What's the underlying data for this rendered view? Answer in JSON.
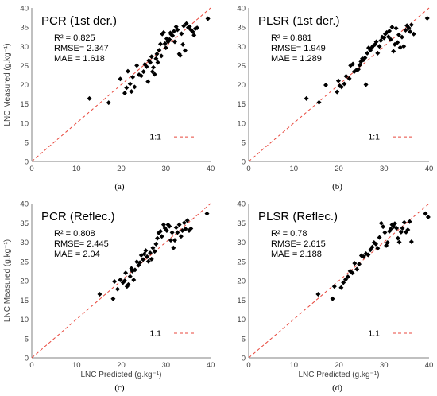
{
  "figure": {
    "panels": [
      {
        "id": "a",
        "title": "PCR (1st der.)",
        "caption": "(a)",
        "stats": [
          "R² = 0.825",
          "RMSE= 2.347",
          "MAE = 1.618"
        ],
        "legend": "1:1",
        "xlabel": "",
        "ylabel": "LNC Measured (g.kg⁻¹)"
      },
      {
        "id": "b",
        "title": "PLSR (1st der.)",
        "caption": "(b)",
        "stats": [
          "R² = 0.881",
          "RMSE= 1.949",
          "MAE = 1.289"
        ],
        "legend": "1:1",
        "xlabel": "",
        "ylabel": ""
      },
      {
        "id": "c",
        "title": "PCR (Reflec.)",
        "caption": "(c)",
        "stats": [
          "R² = 0.808",
          "RMSE= 2.445",
          "MAE = 2.04"
        ],
        "legend": "1:1",
        "xlabel": "LNC Predicted (g.kg⁻¹)",
        "ylabel": "LNC Measured (g.kg⁻¹)"
      },
      {
        "id": "d",
        "title": "PLSR (Reflec.)",
        "caption": "(d)",
        "stats": [
          "R² = 0.78",
          "RMSE= 2.615",
          "MAE = 2.188"
        ],
        "legend": "1:1",
        "xlabel": "LNC Predicted (g.kg⁻¹)",
        "ylabel": ""
      }
    ]
  },
  "colors": {
    "points": "#000000",
    "one_to_one": "#e8473c",
    "axis": "#808080",
    "text": "#404040"
  },
  "chart_data": [
    {
      "type": "scatter",
      "title": "PCR (1st der.)",
      "xlabel": "",
      "ylabel": "LNC Measured (g.kg⁻¹)",
      "xlim": [
        0,
        40
      ],
      "ylim": [
        0,
        40
      ],
      "xticks": [
        0,
        10,
        20,
        30,
        40
      ],
      "yticks": [
        0,
        5,
        10,
        15,
        20,
        25,
        30,
        35,
        40
      ],
      "grid": false,
      "legend": "right",
      "series": [
        {
          "name": "1:1",
          "type": "line",
          "x": [
            0,
            40
          ],
          "y": [
            0,
            40
          ]
        }
      ],
      "points": [
        [
          12.9,
          16.4
        ],
        [
          17.2,
          15.3
        ],
        [
          19.8,
          21.5
        ],
        [
          20.8,
          17.8
        ],
        [
          21.2,
          19.2
        ],
        [
          21.5,
          23.5
        ],
        [
          22.0,
          20.2
        ],
        [
          22.3,
          18.2
        ],
        [
          22.6,
          22.0
        ],
        [
          23.5,
          25.0
        ],
        [
          23.0,
          19.4
        ],
        [
          24.0,
          22.6
        ],
        [
          24.5,
          22.3
        ],
        [
          25.0,
          23.4
        ],
        [
          25.3,
          25.3
        ],
        [
          25.7,
          24.7
        ],
        [
          26.0,
          20.8
        ],
        [
          26.2,
          26.3
        ],
        [
          26.5,
          25.8
        ],
        [
          26.8,
          27.3
        ],
        [
          27.0,
          23.4
        ],
        [
          27.2,
          24.5
        ],
        [
          27.5,
          22.7
        ],
        [
          27.8,
          26.8
        ],
        [
          28.0,
          28.0
        ],
        [
          28.2,
          25.8
        ],
        [
          28.5,
          29.0
        ],
        [
          28.8,
          30.6
        ],
        [
          29.0,
          27.5
        ],
        [
          29.2,
          33.2
        ],
        [
          29.5,
          33.6
        ],
        [
          29.8,
          30.7
        ],
        [
          30.0,
          29.6
        ],
        [
          30.2,
          32.0
        ],
        [
          30.5,
          31.2
        ],
        [
          30.8,
          31.8
        ],
        [
          31.0,
          33.5
        ],
        [
          31.2,
          33.1
        ],
        [
          31.5,
          32.8
        ],
        [
          31.8,
          33.9
        ],
        [
          32.0,
          31.2
        ],
        [
          32.3,
          35.1
        ],
        [
          32.6,
          34.3
        ],
        [
          33.0,
          28.0
        ],
        [
          33.2,
          27.6
        ],
        [
          33.5,
          33.3
        ],
        [
          33.8,
          30.5
        ],
        [
          34.0,
          35.3
        ],
        [
          34.3,
          28.9
        ],
        [
          34.6,
          35.9
        ],
        [
          35.0,
          34.9
        ],
        [
          35.3,
          35.1
        ],
        [
          35.6,
          34.3
        ],
        [
          36.0,
          33.8
        ],
        [
          36.3,
          32.9
        ],
        [
          36.6,
          34.6
        ],
        [
          37.0,
          34.8
        ],
        [
          39.4,
          37.2
        ]
      ]
    },
    {
      "type": "scatter",
      "title": "PLSR (1st der.)",
      "xlabel": "",
      "ylabel": "",
      "xlim": [
        0,
        40
      ],
      "ylim": [
        0,
        40
      ],
      "xticks": [
        0,
        10,
        20,
        30,
        40
      ],
      "yticks": [
        0,
        5,
        10,
        15,
        20,
        25,
        30,
        35,
        40
      ],
      "grid": false,
      "legend": "right",
      "series": [
        {
          "name": "1:1",
          "type": "line",
          "x": [
            0,
            40
          ],
          "y": [
            0,
            40
          ]
        }
      ],
      "points": [
        [
          12.8,
          16.4
        ],
        [
          15.6,
          15.4
        ],
        [
          17.1,
          19.9
        ],
        [
          19.6,
          18.1
        ],
        [
          19.9,
          21.0
        ],
        [
          20.2,
          19.7
        ],
        [
          20.6,
          19.4
        ],
        [
          21.2,
          20.2
        ],
        [
          21.6,
          22.2
        ],
        [
          22.3,
          21.6
        ],
        [
          22.6,
          25.0
        ],
        [
          23.1,
          25.4
        ],
        [
          23.4,
          23.4
        ],
        [
          23.9,
          23.8
        ],
        [
          24.3,
          24.0
        ],
        [
          24.6,
          25.1
        ],
        [
          24.9,
          26.0
        ],
        [
          25.2,
          26.8
        ],
        [
          25.5,
          26.5
        ],
        [
          25.8,
          27.0
        ],
        [
          26.0,
          20.0
        ],
        [
          26.3,
          28.2
        ],
        [
          26.6,
          29.6
        ],
        [
          27.0,
          29.0
        ],
        [
          27.3,
          29.7
        ],
        [
          27.6,
          30.1
        ],
        [
          28.0,
          30.5
        ],
        [
          28.3,
          31.2
        ],
        [
          28.6,
          28.2
        ],
        [
          29.0,
          30.0
        ],
        [
          29.3,
          31.5
        ],
        [
          29.6,
          32.4
        ],
        [
          30.0,
          32.2
        ],
        [
          30.3,
          33.2
        ],
        [
          30.6,
          33.6
        ],
        [
          31.0,
          32.5
        ],
        [
          31.2,
          34.0
        ],
        [
          31.5,
          31.8
        ],
        [
          31.8,
          35.0
        ],
        [
          32.1,
          28.7
        ],
        [
          32.4,
          30.5
        ],
        [
          32.7,
          34.7
        ],
        [
          33.0,
          31.0
        ],
        [
          33.3,
          33.0
        ],
        [
          33.6,
          29.7
        ],
        [
          34.0,
          32.4
        ],
        [
          34.4,
          30.0
        ],
        [
          34.8,
          34.2
        ],
        [
          35.1,
          35.4
        ],
        [
          35.5,
          34.8
        ],
        [
          35.8,
          33.8
        ],
        [
          36.1,
          35.6
        ],
        [
          36.6,
          33.2
        ],
        [
          39.6,
          37.3
        ]
      ]
    },
    {
      "type": "scatter",
      "title": "PCR (Reflec.)",
      "xlabel": "LNC Predicted (g.kg⁻¹)",
      "ylabel": "LNC Measured (g.kg⁻¹)",
      "xlim": [
        0,
        40
      ],
      "ylim": [
        0,
        40
      ],
      "xticks": [
        0,
        10,
        20,
        30,
        40
      ],
      "yticks": [
        0,
        5,
        10,
        15,
        20,
        25,
        30,
        35,
        40
      ],
      "grid": false,
      "legend": "right",
      "series": [
        {
          "name": "1:1",
          "type": "line",
          "x": [
            0,
            40
          ],
          "y": [
            0,
            40
          ]
        }
      ],
      "points": [
        [
          15.2,
          16.5
        ],
        [
          18.2,
          15.3
        ],
        [
          18.5,
          19.8
        ],
        [
          19.2,
          17.8
        ],
        [
          19.8,
          20.2
        ],
        [
          20.4,
          19.5
        ],
        [
          20.8,
          20.0
        ],
        [
          21.0,
          22.0
        ],
        [
          21.3,
          18.5
        ],
        [
          21.6,
          19.0
        ],
        [
          22.0,
          21.1
        ],
        [
          22.3,
          23.2
        ],
        [
          22.5,
          22.5
        ],
        [
          22.8,
          20.2
        ],
        [
          23.1,
          22.8
        ],
        [
          23.5,
          24.9
        ],
        [
          23.9,
          24.0
        ],
        [
          24.2,
          24.7
        ],
        [
          24.5,
          26.6
        ],
        [
          24.9,
          25.5
        ],
        [
          25.2,
          26.9
        ],
        [
          25.5,
          27.8
        ],
        [
          25.8,
          26.2
        ],
        [
          26.1,
          25.0
        ],
        [
          26.5,
          27.2
        ],
        [
          26.8,
          25.6
        ],
        [
          27.1,
          28.5
        ],
        [
          27.5,
          27.6
        ],
        [
          27.8,
          29.5
        ],
        [
          28.1,
          31.0
        ],
        [
          28.4,
          32.4
        ],
        [
          28.8,
          32.8
        ],
        [
          29.1,
          31.5
        ],
        [
          29.5,
          34.5
        ],
        [
          29.8,
          33.6
        ],
        [
          30.2,
          33.0
        ],
        [
          30.5,
          34.5
        ],
        [
          30.8,
          34.1
        ],
        [
          31.1,
          30.5
        ],
        [
          31.4,
          32.5
        ],
        [
          31.7,
          28.5
        ],
        [
          32.0,
          30.5
        ],
        [
          32.3,
          33.8
        ],
        [
          32.6,
          32.5
        ],
        [
          33.0,
          34.5
        ],
        [
          33.4,
          31.5
        ],
        [
          33.7,
          33.0
        ],
        [
          34.1,
          35.0
        ],
        [
          34.4,
          33.4
        ],
        [
          34.8,
          35.6
        ],
        [
          35.2,
          33.0
        ],
        [
          35.6,
          33.5
        ],
        [
          39.2,
          37.4
        ]
      ]
    },
    {
      "type": "scatter",
      "title": "PLSR (Reflec.)",
      "xlabel": "LNC Predicted (g.kg⁻¹)",
      "ylabel": "",
      "xlim": [
        0,
        40
      ],
      "ylim": [
        0,
        40
      ],
      "xticks": [
        0,
        10,
        20,
        30,
        40
      ],
      "yticks": [
        0,
        5,
        10,
        15,
        20,
        25,
        30,
        35,
        40
      ],
      "grid": false,
      "legend": "right",
      "series": [
        {
          "name": "1:1",
          "type": "line",
          "x": [
            0,
            40
          ],
          "y": [
            0,
            40
          ]
        }
      ],
      "points": [
        [
          15.4,
          16.5
        ],
        [
          18.6,
          15.3
        ],
        [
          19.0,
          18.5
        ],
        [
          20.5,
          18.2
        ],
        [
          21.0,
          19.5
        ],
        [
          21.5,
          20.3
        ],
        [
          22.0,
          21.0
        ],
        [
          22.5,
          22.5
        ],
        [
          23.0,
          22.0
        ],
        [
          23.5,
          24.5
        ],
        [
          24.0,
          23.0
        ],
        [
          24.5,
          24.3
        ],
        [
          25.0,
          26.5
        ],
        [
          25.5,
          26.2
        ],
        [
          26.0,
          27.0
        ],
        [
          26.5,
          26.7
        ],
        [
          27.0,
          28.0
        ],
        [
          27.4,
          28.7
        ],
        [
          27.8,
          29.9
        ],
        [
          28.2,
          29.5
        ],
        [
          28.6,
          28.4
        ],
        [
          29.0,
          31.2
        ],
        [
          29.4,
          34.9
        ],
        [
          29.8,
          34.0
        ],
        [
          30.2,
          32.5
        ],
        [
          30.5,
          29.1
        ],
        [
          30.8,
          29.9
        ],
        [
          31.2,
          32.8
        ],
        [
          31.5,
          33.4
        ],
        [
          31.8,
          34.5
        ],
        [
          32.1,
          34.0
        ],
        [
          32.4,
          34.8
        ],
        [
          32.8,
          33.6
        ],
        [
          33.1,
          31.0
        ],
        [
          33.4,
          30.0
        ],
        [
          33.8,
          32.6
        ],
        [
          34.1,
          33.6
        ],
        [
          34.5,
          35.1
        ],
        [
          34.9,
          32.6
        ],
        [
          35.3,
          33.2
        ],
        [
          35.7,
          35.3
        ],
        [
          36.1,
          30.1
        ],
        [
          39.2,
          37.4
        ],
        [
          39.8,
          36.5
        ]
      ]
    }
  ]
}
